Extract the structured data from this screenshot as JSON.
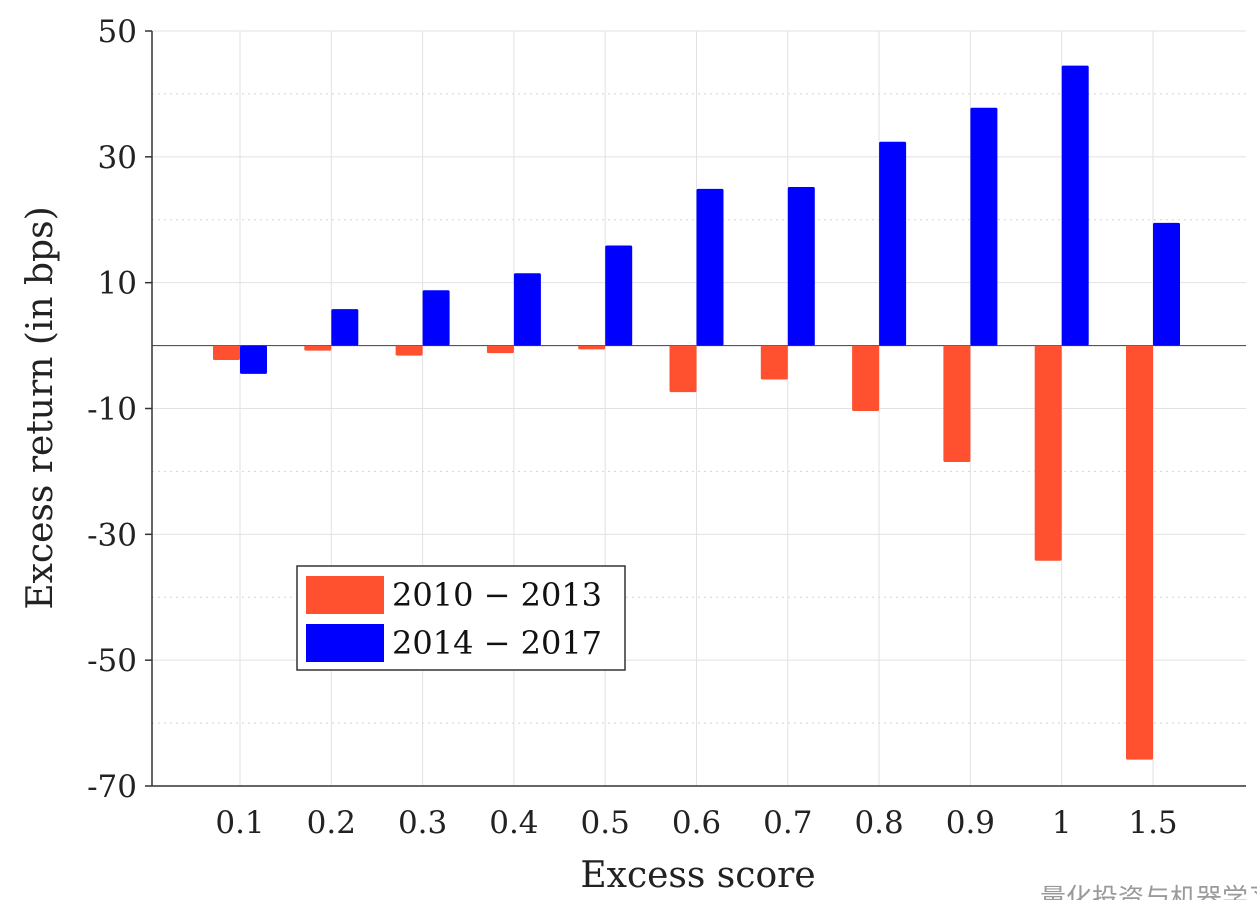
{
  "chart_data": {
    "type": "bar",
    "xlabel": "Excess score",
    "ylabel": "Excess return (in bps)",
    "categories": [
      "0.1",
      "0.2",
      "0.3",
      "0.4",
      "0.5",
      "0.6",
      "0.7",
      "0.8",
      "0.9",
      "1",
      "1.5"
    ],
    "series": [
      {
        "name": "2010 − 2013",
        "color": "#ff5030",
        "values": [
          -2.3,
          -0.8,
          -1.6,
          -1.2,
          -0.6,
          -7.4,
          -5.4,
          -10.4,
          -18.5,
          -34.2,
          -65.8
        ]
      },
      {
        "name": "2014 − 2017",
        "color": "#0000ff",
        "values": [
          -4.5,
          5.8,
          8.8,
          11.5,
          15.9,
          24.9,
          25.2,
          32.4,
          37.8,
          44.5,
          19.5
        ]
      }
    ],
    "ylim": [
      -70,
      50
    ],
    "yticks": [
      50,
      30,
      10,
      -10,
      -30,
      -50,
      -70
    ],
    "ytick_labels": [
      "50",
      "30",
      "10",
      "-10",
      "-30",
      "-50",
      "-70"
    ],
    "grid": true,
    "legend_position": "lower-left"
  },
  "watermark": "量化投资与机器学习"
}
